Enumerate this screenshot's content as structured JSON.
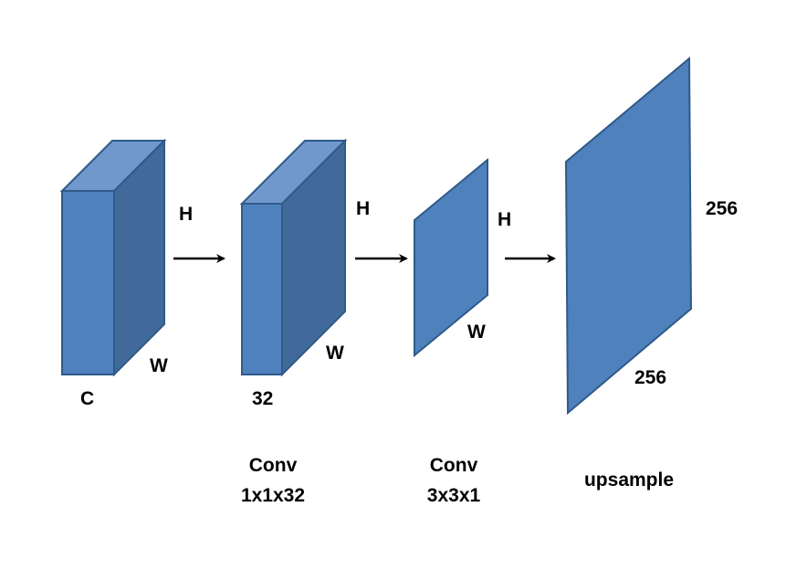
{
  "colors": {
    "face": "#4f81bd",
    "top": "#7198cc",
    "side": "#416a9b",
    "stroke": "#2f5a8a",
    "arrow": "#000000"
  },
  "block1": {
    "height_label": "H",
    "width_label": "W",
    "depth_label": "C"
  },
  "block2": {
    "height_label": "H",
    "width_label": "W",
    "depth_label": "32"
  },
  "plane3": {
    "height_label": "H",
    "width_label": "W",
    "caption_line1": "Conv",
    "caption_line2": "3x3x1"
  },
  "plane4": {
    "height_label": "256",
    "width_label": "256",
    "caption": "upsample"
  },
  "conv1": {
    "caption_line1": "Conv",
    "caption_line2": "1x1x32"
  }
}
